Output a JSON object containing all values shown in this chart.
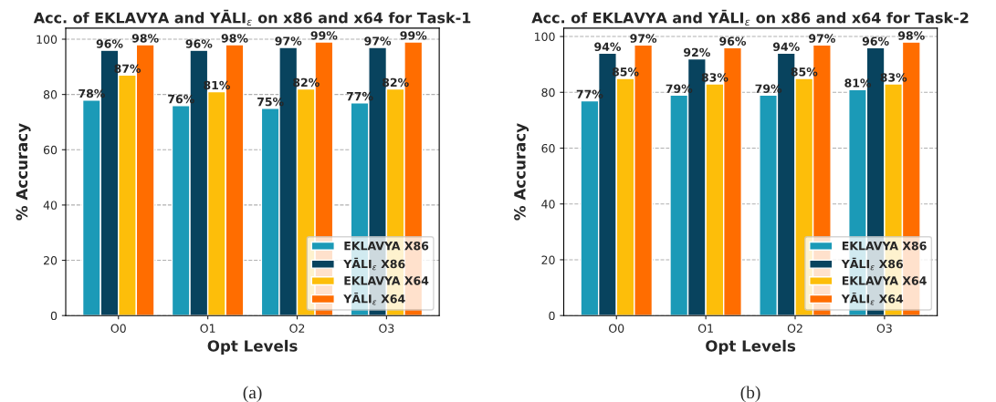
{
  "chart_data": [
    {
      "type": "bar",
      "title": "Acc. of EKLAVYA and YĀLI$_{ε}$ on x86 and x64 for Task-1",
      "xlabel": "Opt Levels",
      "ylabel": "% Accuracy",
      "categories": [
        "O0",
        "O1",
        "O2",
        "O3"
      ],
      "series": [
        {
          "name": "EKLAVYA X86",
          "color": "#1b9ab7",
          "values": [
            78,
            76,
            75,
            77
          ],
          "value_labels": [
            "78%",
            "76%",
            "75%",
            "77%"
          ]
        },
        {
          "name": "YĀLI$_{ε}$ X86",
          "color": "#08435e",
          "values": [
            96,
            96,
            97,
            97
          ],
          "value_labels": [
            "96%",
            "96%",
            "97%",
            "97%"
          ]
        },
        {
          "name": "EKLAVYA X64",
          "color": "#fdbe0a",
          "values": [
            87,
            81,
            82,
            82
          ],
          "value_labels": [
            "87%",
            "81%",
            "82%",
            "82%"
          ]
        },
        {
          "name": "YĀLI$_{ε}$ X64",
          "color": "#ff6d00",
          "values": [
            98,
            98,
            99,
            99
          ],
          "value_labels": [
            "98%",
            "98%",
            "99%",
            "99%"
          ]
        }
      ],
      "ylim": [
        0,
        104
      ],
      "yticks": [
        0,
        20,
        40,
        60,
        80,
        100
      ],
      "grid": "y",
      "legend": "bottom right",
      "annotations": [
        "(a)"
      ]
    },
    {
      "type": "bar",
      "title": "Acc. of EKLAVYA and YĀLI$_{ε}$ on x86 and x64 for Task-2",
      "xlabel": "Opt Levels",
      "ylabel": "% Accuracy",
      "categories": [
        "O0",
        "O1",
        "O2",
        "O3"
      ],
      "series": [
        {
          "name": "EKLAVYA X86",
          "color": "#1b9ab7",
          "values": [
            77,
            79,
            79,
            81
          ],
          "value_labels": [
            "77%",
            "79%",
            "79%",
            "81%"
          ]
        },
        {
          "name": "YĀLI$_{ε}$ X86",
          "color": "#08435e",
          "values": [
            94,
            92,
            94,
            96
          ],
          "value_labels": [
            "94%",
            "92%",
            "94%",
            "96%"
          ]
        },
        {
          "name": "EKLAVYA X64",
          "color": "#fdbe0a",
          "values": [
            85,
            83,
            85,
            83
          ],
          "value_labels": [
            "85%",
            "83%",
            "85%",
            "83%"
          ]
        },
        {
          "name": "YĀLI$_{ε}$ X64",
          "color": "#ff6d00",
          "values": [
            97,
            96,
            97,
            98
          ],
          "value_labels": [
            "97%",
            "96%",
            "97%",
            "98%"
          ]
        }
      ],
      "ylim": [
        0,
        103
      ],
      "yticks": [
        0,
        20,
        40,
        60,
        80,
        100
      ],
      "grid": "y",
      "legend": "bottom right",
      "annotations": [
        "(b)"
      ]
    }
  ]
}
